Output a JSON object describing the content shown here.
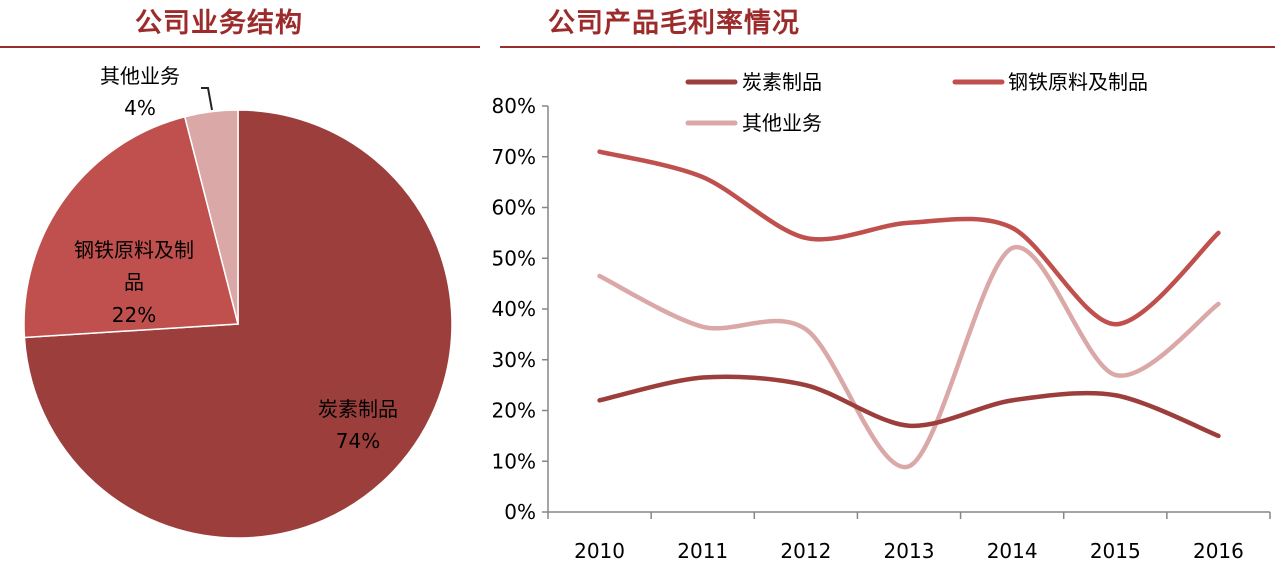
{
  "titles": {
    "left": "公司业务结构",
    "right": "公司产品毛利率情况"
  },
  "colors": {
    "title": "#9c2c2c",
    "carbon": "#9c3f3c",
    "steel": "#c0504d",
    "other": "#dba8a8"
  },
  "chart_data": [
    {
      "type": "pie",
      "title": "公司业务结构",
      "slices": [
        {
          "label": "炭素制品",
          "value": 74,
          "display": "74%"
        },
        {
          "label": "钢铁原料及制品",
          "label_lines": [
            "钢铁原料及制",
            "品"
          ],
          "value": 22,
          "display": "22%"
        },
        {
          "label": "其他业务",
          "value": 4,
          "display": "4%"
        }
      ]
    },
    {
      "type": "line",
      "title": "公司产品毛利率情况",
      "categories": [
        "2010",
        "2011",
        "2012",
        "2013",
        "2014",
        "2015",
        "2016"
      ],
      "yticks": [
        "0%",
        "10%",
        "20%",
        "30%",
        "40%",
        "50%",
        "60%",
        "70%",
        "80%"
      ],
      "ylim": [
        0,
        80
      ],
      "legend_position": "top",
      "series": [
        {
          "name": "炭素制品",
          "values": [
            22,
            26.5,
            25,
            17,
            22,
            23,
            15
          ]
        },
        {
          "name": "钢铁原料及制品",
          "values": [
            71,
            66,
            54,
            57,
            56,
            37,
            55
          ]
        },
        {
          "name": "其他业务",
          "values": [
            46.5,
            36.5,
            36,
            9,
            52,
            27,
            41
          ]
        }
      ]
    }
  ]
}
